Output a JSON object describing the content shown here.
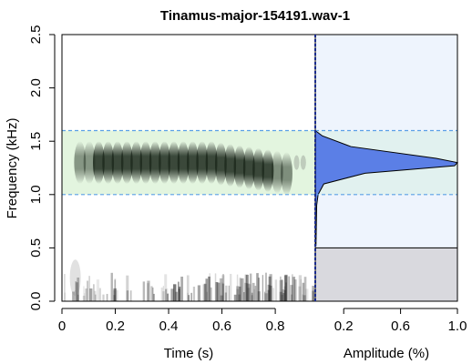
{
  "chart_data": {
    "type": "spectrogram",
    "title": "Tinamus-major-154191.wav-1",
    "xlabel": "Time (s)",
    "ylabel": "Frequency (kHz)",
    "xlabel_amp": "Amplitude (%)",
    "xlim": [
      0,
      0.95
    ],
    "ylim": [
      0,
      2.5
    ],
    "amp_xlim": [
      0,
      1.0
    ],
    "x_ticks": [
      0,
      0.2,
      0.4,
      0.6,
      0.8
    ],
    "x_tick_labels": [
      "0",
      "0.2",
      "0.4",
      "0.6",
      "0.8"
    ],
    "y_ticks": [
      0,
      0.5,
      1.0,
      1.5,
      2.0,
      2.5
    ],
    "y_tick_labels": [
      "0.0",
      "0.5",
      "1.0",
      "1.5",
      "2.0",
      "2.5"
    ],
    "amp_ticks": [
      0.2,
      0.6,
      1.0
    ],
    "amp_tick_labels": [
      "0.2",
      "0.6",
      "1.0"
    ],
    "selection": {
      "freq_low": 1.0,
      "freq_high": 1.6
    },
    "call": {
      "t_start": 0.05,
      "t_end": 0.86,
      "freq_center": 1.3,
      "freq_band": [
        1.1,
        1.5
      ]
    },
    "amplitude_profile": [
      {
        "freq": 0.52,
        "amp": 0.005
      },
      {
        "freq": 0.9,
        "amp": 0.01
      },
      {
        "freq": 1.0,
        "amp": 0.02
      },
      {
        "freq": 1.1,
        "amp": 0.06
      },
      {
        "freq": 1.2,
        "amp": 0.35
      },
      {
        "freq": 1.27,
        "amp": 0.98
      },
      {
        "freq": 1.3,
        "amp": 1.0
      },
      {
        "freq": 1.34,
        "amp": 0.85
      },
      {
        "freq": 1.45,
        "amp": 0.25
      },
      {
        "freq": 1.55,
        "amp": 0.05
      },
      {
        "freq": 1.6,
        "amp": 0.0
      }
    ],
    "colors": {
      "selection_fill": "#e3f5df",
      "selection_border": "#5aa0e6",
      "amp_panel_fill": "#eef4fd",
      "amp_area_fill": "#5b7fe6",
      "noise_floor_fill": "#d9d9de",
      "time_marker": "#1a2b8c"
    }
  }
}
